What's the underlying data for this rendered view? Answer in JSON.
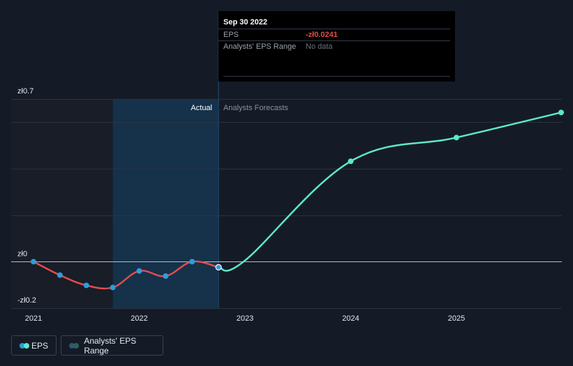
{
  "tooltip": {
    "date": "Sep 30 2022",
    "rows": [
      {
        "label": "EPS",
        "value": "-zł0.0241",
        "value_color": "#e24c4c"
      },
      {
        "label": "Analysts' EPS Range",
        "value": "No data",
        "value_color": "#6b7280"
      }
    ]
  },
  "region_labels": {
    "actual": "Actual",
    "forecast": "Analysts Forecasts"
  },
  "legend": {
    "eps": "EPS",
    "range": "Analysts' EPS Range"
  },
  "colors": {
    "background": "#151b26",
    "actual_line": "#e24c4c",
    "forecast_line": "#5ce8cc",
    "actual_marker": "#2d9cdb",
    "highlight_band": "#16314a",
    "grid": "#2b3240",
    "zero_line": "#b9bec7"
  },
  "chart_data": {
    "type": "line",
    "title": "",
    "xlabel": "",
    "ylabel": "",
    "x_ticks": [
      "2021",
      "2022",
      "2023",
      "2024",
      "2025"
    ],
    "y_ticks": [
      {
        "label": "zł0.7",
        "value": 0.7
      },
      {
        "label": "zł0",
        "value": 0
      },
      {
        "label": "-zł0.2",
        "value": -0.2
      }
    ],
    "ylim": [
      -0.2,
      0.7
    ],
    "xlim": [
      2020.83,
      2025.99
    ],
    "shaded_past_end": 2021.75,
    "highlight_range": [
      2021.75,
      2022.75
    ],
    "series": [
      {
        "name": "EPS",
        "role": "actual",
        "x": [
          2021.0,
          2021.25,
          2021.5,
          2021.75,
          2022.0,
          2022.25,
          2022.5,
          2022.75
        ],
        "y": [
          0.0,
          -0.058,
          -0.102,
          -0.111,
          -0.04,
          -0.062,
          0.0,
          -0.0241
        ]
      },
      {
        "name": "EPS",
        "role": "forecast",
        "x": [
          2022.75,
          2023.0,
          2024.0,
          2025.0,
          2025.99
        ],
        "y": [
          -0.0241,
          0.005,
          0.432,
          0.534,
          0.642
        ],
        "marker_x": [
          2024.0,
          2025.0,
          2025.99
        ]
      }
    ],
    "legend_position": "bottom-left"
  }
}
